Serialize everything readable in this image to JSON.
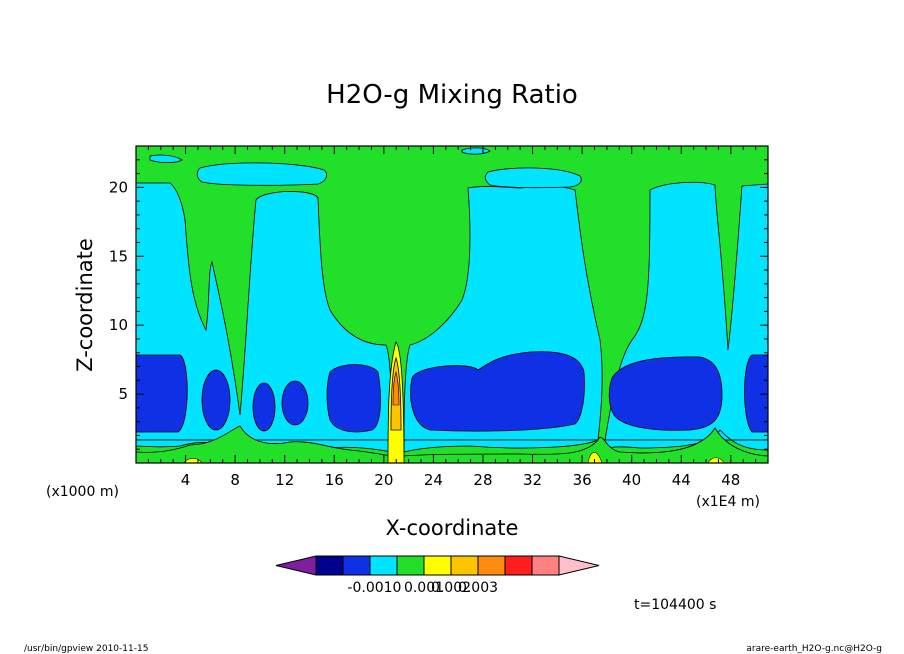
{
  "chart_data": {
    "type": "heatmap",
    "title": "H2O-g Mixing Ratio",
    "xlabel": "X-coordinate",
    "ylabel": "Z-coordinate",
    "x_scale_note": "(x1E4 m)",
    "y_scale_note": "(x1000 m)",
    "xlim": [
      0,
      51
    ],
    "ylim": [
      0,
      23
    ],
    "x_ticks": [
      4,
      8,
      12,
      16,
      20,
      24,
      28,
      32,
      36,
      40,
      44,
      48
    ],
    "y_ticks": [
      5,
      10,
      15,
      20
    ],
    "colorbar": {
      "colors": [
        "#7f1fa0",
        "#00008f",
        "#1030e6",
        "#00e4ff",
        "#22e02a",
        "#ffff00",
        "#ffc400",
        "#ff8a10",
        "#ff1e1e",
        "#ff8080",
        "#ffc0cb"
      ],
      "tick_labels": [
        "-0.001",
        "0",
        "0.001",
        "0.002",
        "0.003"
      ]
    },
    "time_label": "t=104400 s"
  },
  "footer": {
    "left": "/usr/bin/gpview   2010-11-15",
    "right": "arare-earth_H2O-g.nc@H2O-g"
  }
}
